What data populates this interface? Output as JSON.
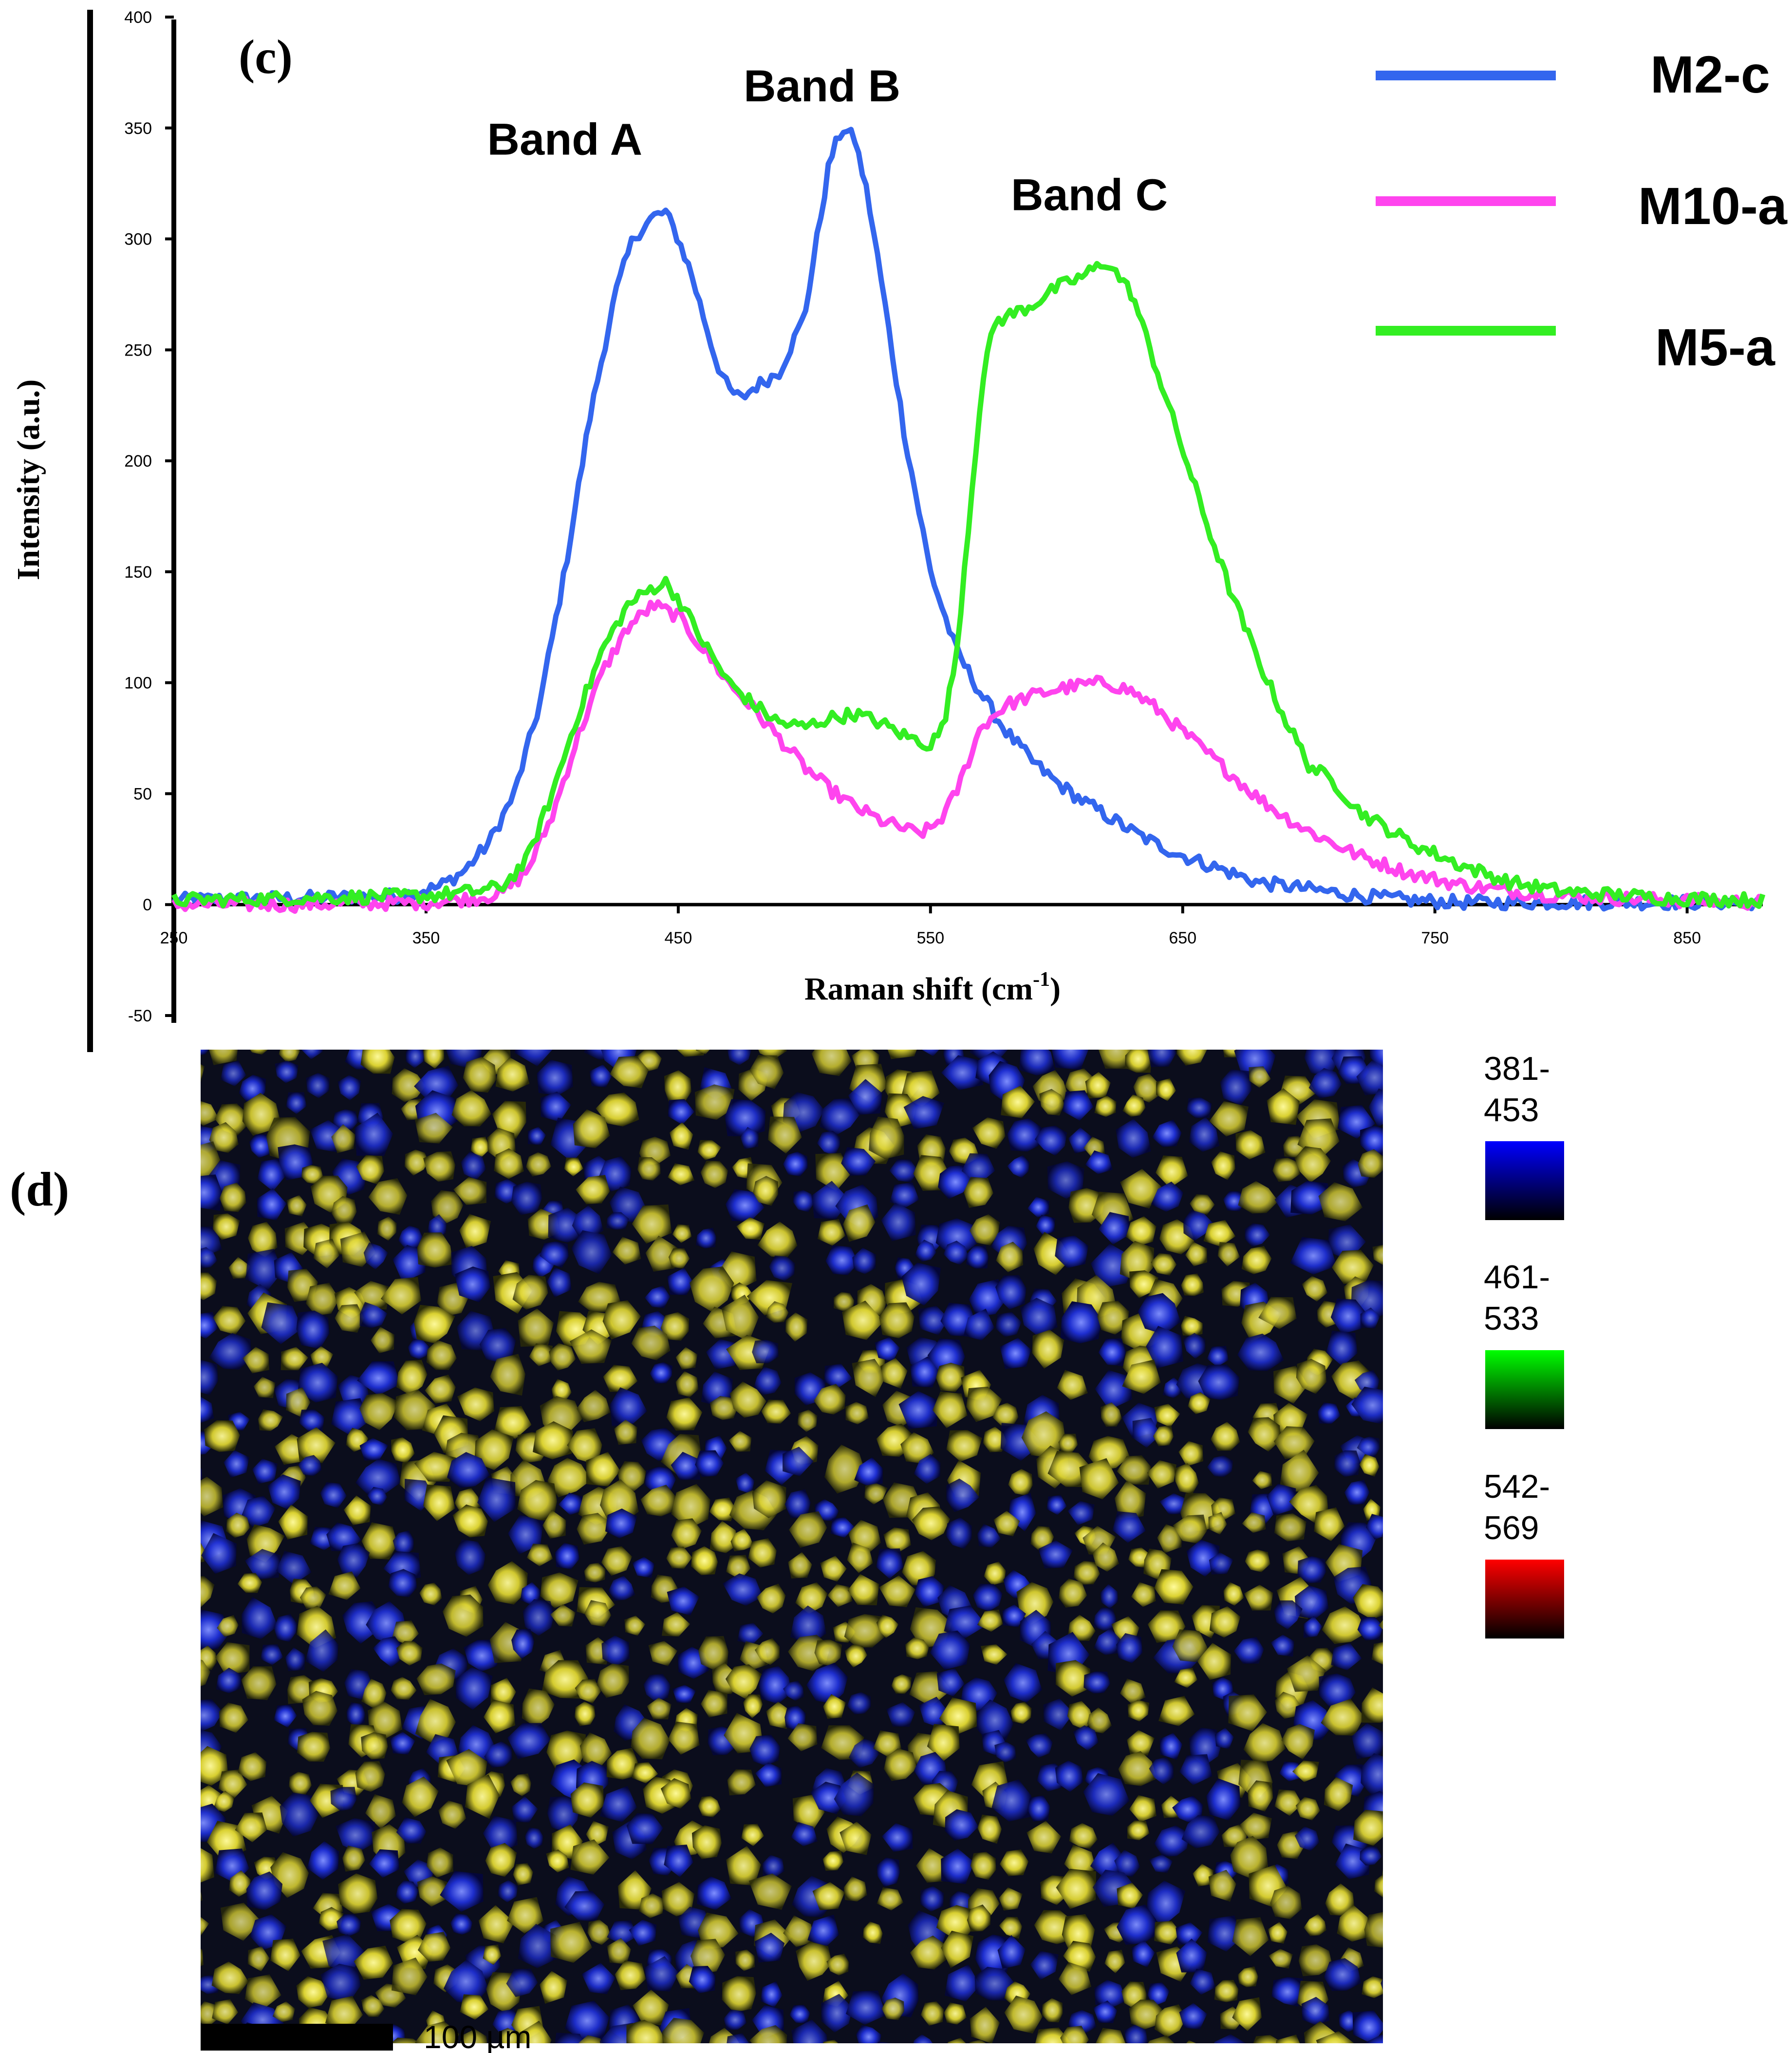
{
  "chart_data": {
    "type": "line",
    "panel_label": "(c)",
    "xlabel_main": "Raman shift (cm",
    "xlabel_sup": "-1",
    "xlabel_close": ")",
    "ylabel": "Intensity (a.u.)",
    "xlim": [
      250,
      880
    ],
    "ylim": [
      -50,
      400
    ],
    "xticks": [
      250,
      350,
      450,
      550,
      650,
      750,
      850
    ],
    "yticks": [
      -50,
      0,
      50,
      100,
      150,
      200,
      250,
      300,
      350,
      400
    ],
    "annotations": [
      {
        "text": "Band A",
        "x": 405,
        "y": 338
      },
      {
        "text": "Band B",
        "x": 507,
        "y": 362
      },
      {
        "text": "Band C",
        "x": 613,
        "y": 313
      }
    ],
    "series": [
      {
        "name": "M2-c",
        "color": "#3366ee",
        "x": [
          250,
          300,
          340,
          355,
          365,
          375,
          385,
          395,
          405,
          415,
          425,
          432,
          440,
          445,
          450,
          455,
          460,
          465,
          470,
          475,
          480,
          490,
          500,
          505,
          510,
          515,
          520,
          525,
          530,
          540,
          550,
          560,
          570,
          580,
          590,
          600,
          610,
          620,
          630,
          640,
          650,
          660,
          670,
          680,
          700,
          720,
          740,
          760,
          800,
          880
        ],
        "y": [
          2,
          3,
          4,
          8,
          15,
          28,
          50,
          90,
          150,
          220,
          275,
          300,
          310,
          312,
          300,
          285,
          265,
          245,
          232,
          228,
          233,
          240,
          265,
          300,
          335,
          350,
          345,
          320,
          285,
          210,
          150,
          115,
          95,
          78,
          65,
          55,
          47,
          40,
          33,
          27,
          22,
          18,
          14,
          10,
          7,
          4,
          2,
          1,
          1,
          1
        ]
      },
      {
        "name": "M10-a",
        "color": "#ff44ee",
        "x": [
          250,
          300,
          350,
          370,
          380,
          390,
          400,
          410,
          420,
          430,
          440,
          450,
          460,
          470,
          480,
          490,
          500,
          510,
          520,
          530,
          540,
          545,
          550,
          555,
          560,
          565,
          570,
          580,
          590,
          600,
          610,
          620,
          630,
          640,
          650,
          660,
          670,
          680,
          690,
          700,
          720,
          740,
          760,
          780,
          800,
          840,
          880
        ],
        "y": [
          0,
          0,
          1,
          3,
          5,
          15,
          40,
          75,
          105,
          125,
          135,
          130,
          115,
          100,
          88,
          75,
          62,
          52,
          44,
          38,
          34,
          32,
          34,
          40,
          50,
          65,
          80,
          90,
          94,
          97,
          99,
          100,
          96,
          88,
          78,
          68,
          58,
          48,
          40,
          33,
          22,
          14,
          9,
          6,
          4,
          2,
          1
        ]
      },
      {
        "name": "M5-a",
        "color": "#33ee22",
        "x": [
          250,
          300,
          350,
          370,
          380,
          390,
          400,
          410,
          420,
          430,
          440,
          445,
          450,
          460,
          470,
          480,
          490,
          500,
          510,
          520,
          530,
          540,
          550,
          555,
          560,
          565,
          570,
          575,
          580,
          590,
          600,
          610,
          620,
          630,
          640,
          650,
          660,
          670,
          680,
          690,
          700,
          710,
          720,
          740,
          760,
          780,
          800,
          840,
          880
        ],
        "y": [
          2,
          3,
          4,
          6,
          8,
          20,
          50,
          85,
          115,
          135,
          143,
          145,
          138,
          118,
          100,
          90,
          82,
          80,
          84,
          86,
          82,
          76,
          72,
          80,
          110,
          170,
          230,
          262,
          265,
          270,
          278,
          283,
          290,
          275,
          240,
          205,
          170,
          138,
          110,
          85,
          63,
          55,
          42,
          28,
          18,
          10,
          6,
          3,
          2
        ]
      }
    ],
    "legend": {
      "position": "top-right"
    }
  },
  "map": {
    "panel_label": "(d)",
    "scale_bar_label": "100 µm",
    "color_keys": [
      {
        "line1": "381-",
        "line2": "453",
        "color": "#0000ff"
      },
      {
        "line1": "461-",
        "line2": "533",
        "color": "#00ff00"
      },
      {
        "line1": "542-",
        "line2": "569",
        "color": "#ff0000"
      }
    ]
  }
}
